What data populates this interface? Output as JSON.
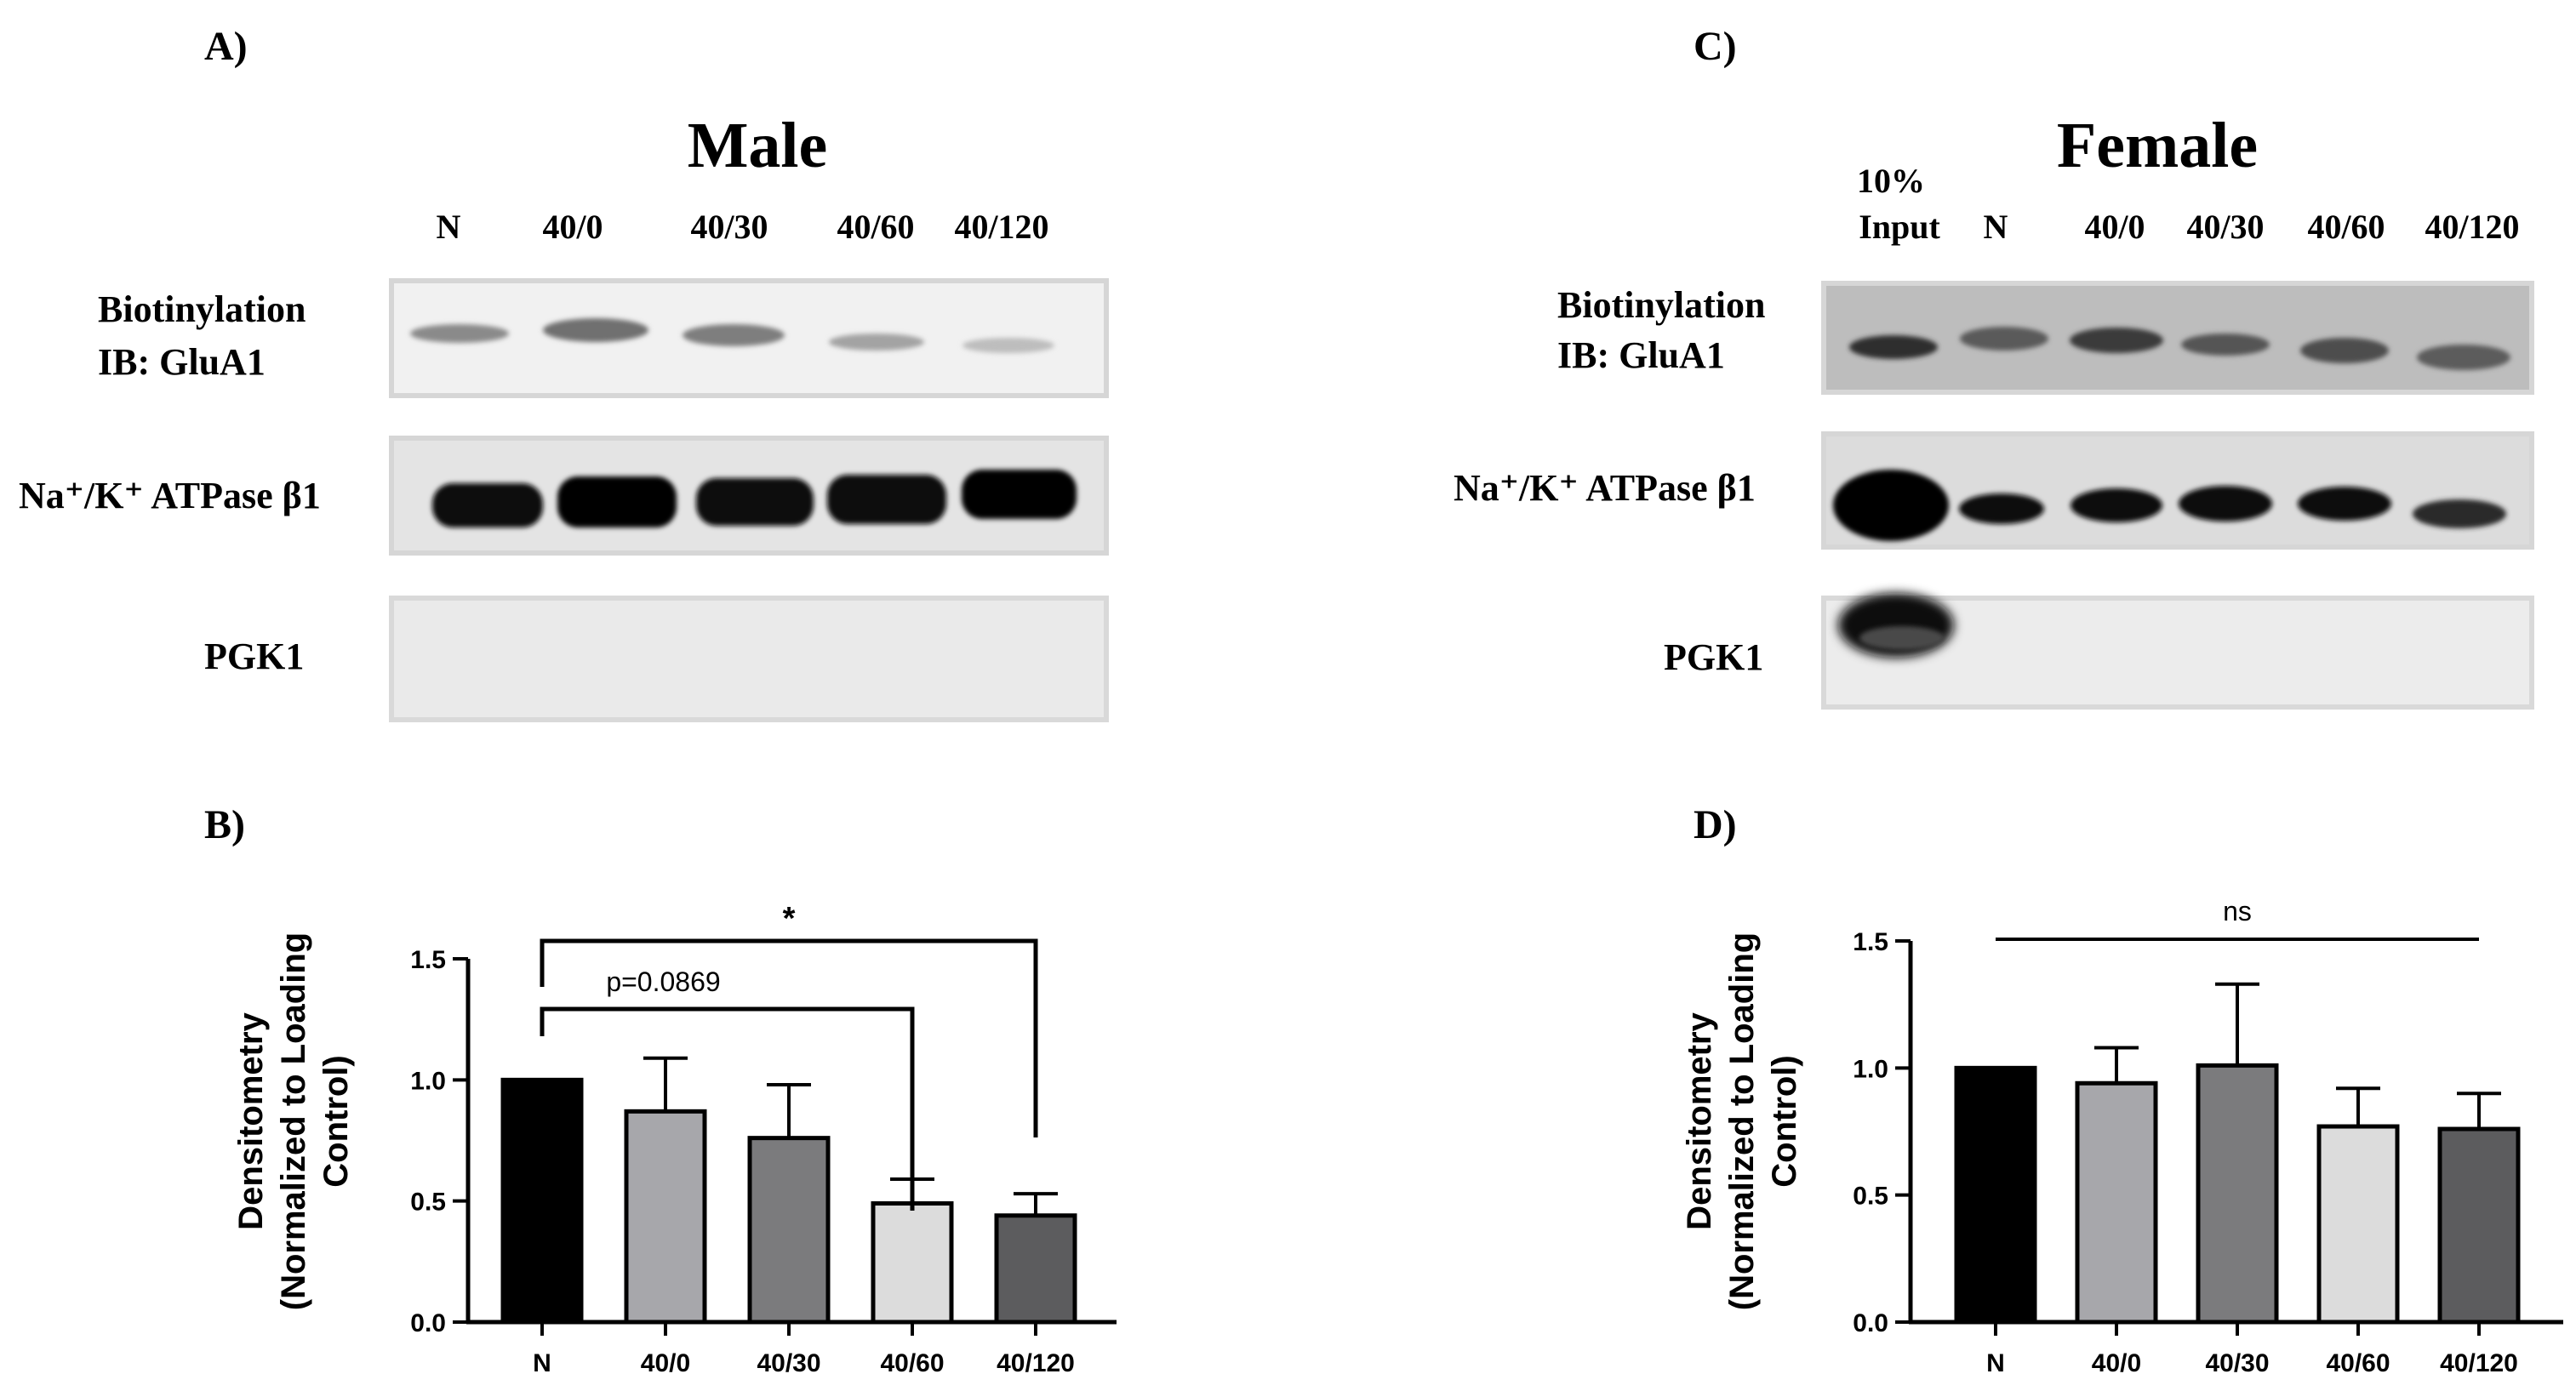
{
  "panels": {
    "a": {
      "label": "A)",
      "title": "Male",
      "lanes": [
        "N",
        "40/0",
        "40/30",
        "40/60",
        "40/120"
      ],
      "rows": {
        "biotin_1": "Biotinylation",
        "biotin_2": "IB: GluA1",
        "atpase": "Na⁺/K⁺ ATPase β1",
        "pgk1": "PGK1"
      }
    },
    "c": {
      "label": "C)",
      "title": "Female",
      "input_1": "10%",
      "input_2": "Input",
      "lanes": [
        "N",
        "40/0",
        "40/30",
        "40/60",
        "40/120"
      ],
      "rows": {
        "biotin_1": "Biotinylation",
        "biotin_2": "IB: GluA1",
        "atpase": "Na⁺/K⁺ ATPase β1",
        "pgk1": "PGK1"
      }
    },
    "b": {
      "label": "B)"
    },
    "d": {
      "label": "D)"
    }
  },
  "colors": {
    "N": "#000000",
    "40/0": "#a7a7ab",
    "40/30": "#7b7b7d",
    "40/60": "#dcdcdc",
    "40/120": "#5c5c5e"
  },
  "chart_data": [
    {
      "type": "bar",
      "panel": "B)",
      "categories": [
        "N",
        "40/0",
        "40/30",
        "40/60",
        "40/120"
      ],
      "values": [
        1.0,
        0.87,
        0.76,
        0.49,
        0.44
      ],
      "errors": [
        0,
        0.22,
        0.22,
        0.1,
        0.09
      ],
      "ylabel_1": "Densitometry",
      "ylabel_2": "(Normalized to Loading",
      "ylabel_3": "Control)",
      "ylim": [
        0,
        1.5
      ],
      "yticks": [
        "0.0",
        "0.5",
        "1.0",
        "1.5"
      ],
      "annotations": [
        {
          "text": "*",
          "from": "N",
          "to": "40/120"
        },
        {
          "text": "p=0.0869",
          "from": "N",
          "to": "40/60"
        }
      ]
    },
    {
      "type": "bar",
      "panel": "D)",
      "categories": [
        "N",
        "40/0",
        "40/30",
        "40/60",
        "40/120"
      ],
      "values": [
        1.0,
        0.94,
        1.01,
        0.77,
        0.76
      ],
      "errors": [
        0,
        0.14,
        0.32,
        0.15,
        0.14
      ],
      "ylabel_1": "Densitometry",
      "ylabel_2": "(Normalized to Loading",
      "ylabel_3": "Control)",
      "ylim": [
        0,
        1.5
      ],
      "yticks": [
        "0.0",
        "0.5",
        "1.0",
        "1.5"
      ],
      "annotations": [
        {
          "text": "ns",
          "from": "N",
          "to": "40/120"
        }
      ]
    }
  ]
}
